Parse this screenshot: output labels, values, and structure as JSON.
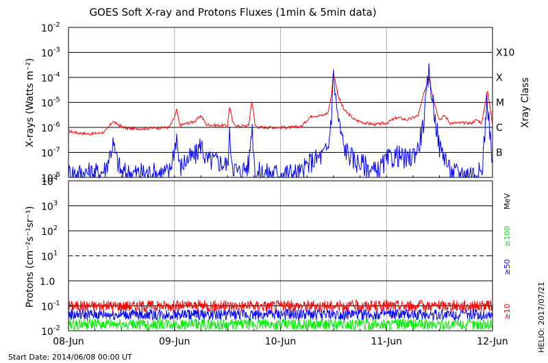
{
  "chart_data": [
    {
      "type": "line",
      "title": "GOES Soft X-ray and Protons Fluxes   (1min & 5min data)",
      "ylabel": "X-rays (Watts m⁻²)",
      "y2label": "Xray Class",
      "yscale": "log",
      "ylim": [
        1e-08,
        0.01
      ],
      "ytick_base": "10",
      "ytick_exponents": [
        "-2",
        "-3",
        "-4",
        "-5",
        "-6",
        "-7",
        "-8"
      ],
      "class_labels": [
        {
          "label": "X10",
          "value": 0.001
        },
        {
          "label": "X",
          "value": 0.0001
        },
        {
          "label": "M",
          "value": 1e-05
        },
        {
          "label": "C",
          "value": 1e-06
        },
        {
          "label": "B",
          "value": 1e-07
        }
      ],
      "grid": true,
      "series": [
        {
          "color": "#ff0000",
          "x": [
            0.0,
            0.1,
            0.2,
            0.3,
            0.35,
            0.42,
            0.45,
            0.5,
            0.55,
            0.7,
            0.8,
            0.95,
            1.0,
            1.02,
            1.05,
            1.1,
            1.2,
            1.25,
            1.3,
            1.4,
            1.5,
            1.52,
            1.55,
            1.6,
            1.7,
            1.73,
            1.76,
            1.8,
            1.9,
            2.0,
            2.1,
            2.2,
            2.25,
            2.3,
            2.4,
            2.45,
            2.48,
            2.5,
            2.52,
            2.55,
            2.6,
            2.7,
            2.8,
            2.9,
            3.0,
            3.1,
            3.2,
            3.3,
            3.35,
            3.4,
            3.45,
            3.5,
            3.55,
            3.6,
            3.7,
            3.8,
            3.85,
            3.9,
            3.95,
            4.0
          ],
          "values": [
            7e-07,
            6e-07,
            5.5e-07,
            6e-07,
            7e-07,
            1.8e-06,
            1.4e-06,
            1.1e-06,
            9e-07,
            9e-07,
            9.5e-07,
            1e-06,
            2.5e-06,
            5e-06,
            1.2e-06,
            1.4e-06,
            1.8e-06,
            3e-06,
            1.3e-06,
            1.2e-06,
            1.2e-06,
            7e-06,
            1.5e-06,
            1.1e-06,
            1.2e-06,
            1.3e-05,
            1.2e-06,
            1e-06,
            1e-06,
            1e-06,
            1e-06,
            1.1e-06,
            2e-06,
            3e-06,
            3e-06,
            4e-06,
            2e-05,
            0.00015,
            6e-05,
            1.5e-05,
            5e-06,
            2e-06,
            1.5e-06,
            1.3e-06,
            1.5e-06,
            2.5e-06,
            2e-06,
            3e-06,
            2e-05,
            0.0001,
            1e-05,
            2e-06,
            3e-06,
            1.5e-06,
            1.5e-06,
            1.5e-06,
            2e-06,
            1.5e-06,
            3e-05,
            1.6e-06
          ]
        },
        {
          "color": "#0000ff",
          "x": [
            0.0,
            0.1,
            0.2,
            0.3,
            0.35,
            0.42,
            0.45,
            0.5,
            0.55,
            0.7,
            0.8,
            0.95,
            1.0,
            1.02,
            1.05,
            1.1,
            1.2,
            1.25,
            1.3,
            1.4,
            1.5,
            1.52,
            1.55,
            1.6,
            1.7,
            1.73,
            1.76,
            1.8,
            1.9,
            2.0,
            2.1,
            2.2,
            2.25,
            2.3,
            2.4,
            2.45,
            2.48,
            2.5,
            2.52,
            2.55,
            2.6,
            2.7,
            2.8,
            2.9,
            3.0,
            3.1,
            3.2,
            3.3,
            3.35,
            3.4,
            3.45,
            3.5,
            3.55,
            3.6,
            3.7,
            3.8,
            3.85,
            3.9,
            3.95,
            4.0
          ],
          "values": [
            1e-08,
            1e-08,
            1e-08,
            1e-08,
            1.5e-08,
            1.5e-07,
            4e-08,
            1e-08,
            1e-08,
            1e-08,
            1e-08,
            1e-08,
            1e-07,
            3e-07,
            1.5e-08,
            3e-08,
            5e-08,
            1.5e-07,
            3e-08,
            3e-08,
            2e-08,
            3e-07,
            2e-08,
            1e-08,
            2e-08,
            1e-06,
            1e-08,
            1e-08,
            1e-08,
            1e-08,
            1e-08,
            1e-08,
            2e-08,
            3e-08,
            5e-08,
            1e-07,
            2e-06,
            0.0001,
            1e-05,
            1e-06,
            1e-07,
            3e-08,
            2e-08,
            1e-08,
            3e-08,
            5e-08,
            3e-08,
            1e-07,
            1e-06,
            0.0001,
            3e-06,
            1e-07,
            5e-08,
            1e-08,
            1e-08,
            1e-08,
            1e-08,
            1e-08,
            1e-05,
            2e-08
          ]
        }
      ]
    },
    {
      "type": "line",
      "ylabel": "Protons (cm⁻²s⁻¹sr⁻¹)",
      "yscale": "log",
      "ylim": [
        0.01,
        10000
      ],
      "ytick_labels": [
        {
          "base": "10",
          "exp": "4",
          "value": 10000
        },
        {
          "base": "10",
          "exp": "3",
          "value": 1000
        },
        {
          "base": "10",
          "exp": "2",
          "value": 100
        },
        {
          "base": "10",
          "exp": "1",
          "value": 10
        },
        {
          "base": "1.0",
          "exp": "",
          "value": 1
        },
        {
          "base": "10",
          "exp": "-1",
          "value": 0.1
        },
        {
          "base": "10",
          "exp": "-2",
          "value": 0.01
        }
      ],
      "unit_label": "MeV",
      "grid": true,
      "dashed_level": 10,
      "series": [
        {
          "name": "≥10",
          "color": "#ff0000",
          "typical": 0.1
        },
        {
          "name": "≥50",
          "color": "#0000ff",
          "typical": 0.045
        },
        {
          "name": "≥100",
          "color": "#00ee00",
          "typical": 0.018
        }
      ]
    }
  ],
  "x_axis": {
    "tick_labels": [
      "08-Jun",
      "09-Jun",
      "10-Jun",
      "11-Jun",
      "12-Jun"
    ],
    "day_range": [
      0,
      4
    ]
  },
  "footer": {
    "start_date": "Start Date: 2014/06/08 00:00 UT",
    "credit": "HELIO: 2017/07/21"
  }
}
